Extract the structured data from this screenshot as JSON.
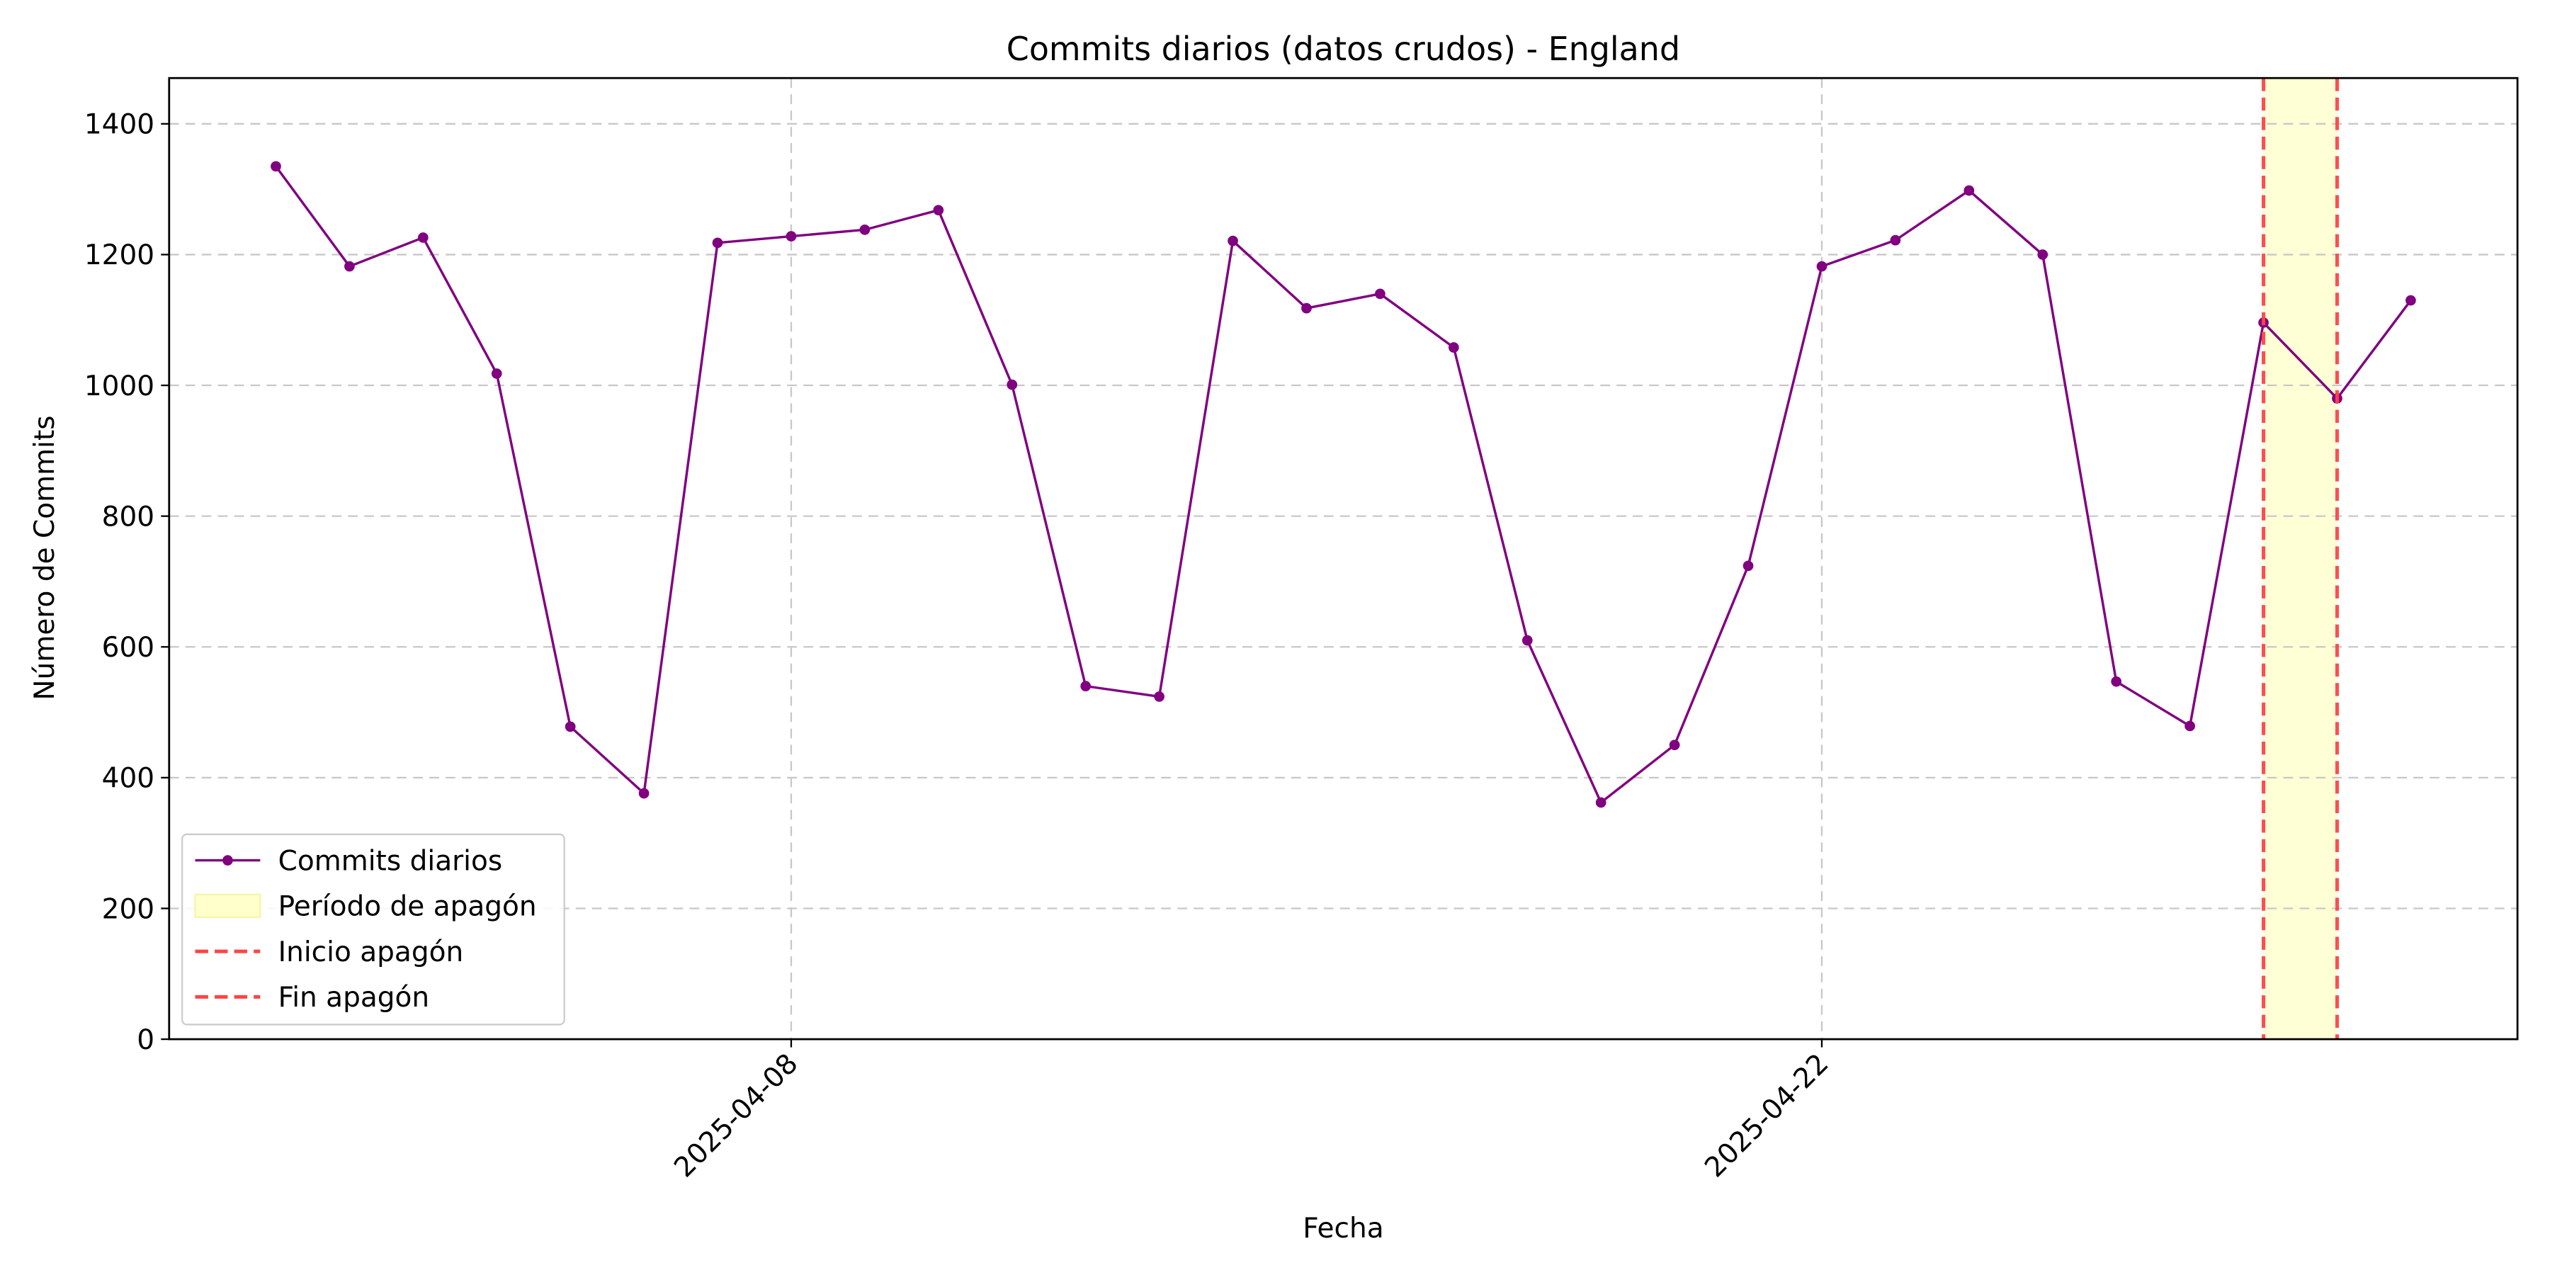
{
  "chart_data": {
    "type": "line",
    "title": "Commits diarios (datos crudos) - England",
    "xlabel": "Fecha",
    "ylabel": "Número de Commits",
    "x": [
      "2025-04-01",
      "2025-04-02",
      "2025-04-03",
      "2025-04-04",
      "2025-04-05",
      "2025-04-06",
      "2025-04-07",
      "2025-04-08",
      "2025-04-09",
      "2025-04-10",
      "2025-04-11",
      "2025-04-12",
      "2025-04-13",
      "2025-04-14",
      "2025-04-15",
      "2025-04-16",
      "2025-04-17",
      "2025-04-18",
      "2025-04-19",
      "2025-04-20",
      "2025-04-21",
      "2025-04-22",
      "2025-04-23",
      "2025-04-24",
      "2025-04-25",
      "2025-04-26",
      "2025-04-27",
      "2025-04-28",
      "2025-04-29",
      "2025-04-30"
    ],
    "series": [
      {
        "name": "Commits diarios",
        "color": "#800080",
        "values": [
          1335,
          1182,
          1226,
          1018,
          478,
          376,
          1218,
          1228,
          1238,
          1268,
          1001,
          540,
          524,
          1221,
          1118,
          1140,
          1058,
          610,
          362,
          450,
          724,
          1182,
          1222,
          1298,
          1200,
          547,
          479,
          1096,
          980,
          1130
        ]
      }
    ],
    "blackout": {
      "span_name": "Período de apagón",
      "span_color": "#ffffcc",
      "start_name": "Inicio apagón",
      "end_name": "Fin apagón",
      "line_color": "#ff4444",
      "start": "2025-04-28",
      "end": "2025-04-29"
    },
    "xlim": [
      "2025-03-30T13:12",
      "2025-05-01T10:48"
    ],
    "xticks": [
      "2025-04-08",
      "2025-04-22"
    ],
    "ylim": [
      0,
      1470
    ],
    "yticks": [
      0,
      200,
      400,
      600,
      800,
      1000,
      1200,
      1400
    ],
    "grid": true,
    "legend": "lower left"
  }
}
